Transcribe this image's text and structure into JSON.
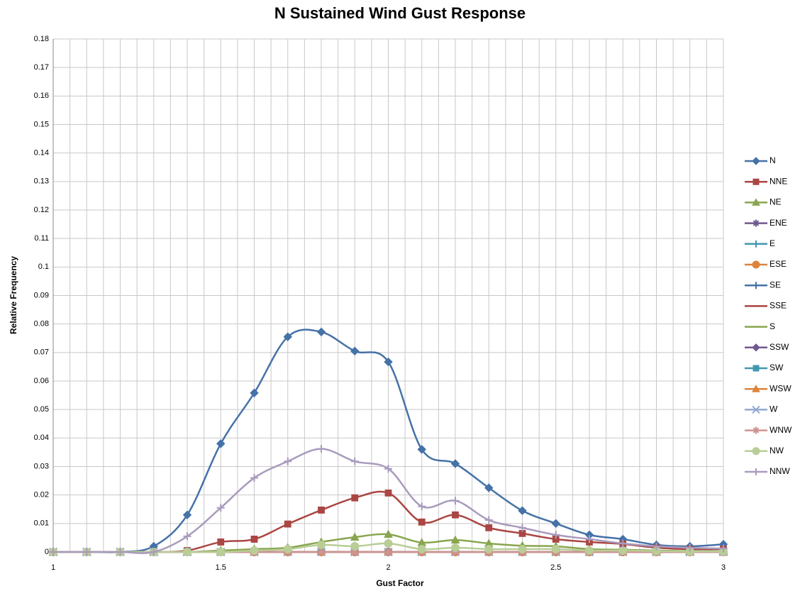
{
  "chart_data": {
    "type": "line",
    "title": "N Sustained Wind Gust Response",
    "xlabel": "Gust Factor",
    "ylabel": "Relative Frequency",
    "x": [
      1,
      1.1,
      1.2,
      1.3,
      1.4,
      1.5,
      1.6,
      1.7,
      1.8,
      1.9,
      2,
      2.1,
      2.2,
      2.3,
      2.4,
      2.5,
      2.6,
      2.7,
      2.8,
      2.9,
      3
    ],
    "xlim": [
      1,
      3
    ],
    "xticks": [
      1,
      1.5,
      2,
      2.5,
      3
    ],
    "xminor": [
      1.05,
      1.1,
      1.15,
      1.2,
      1.25,
      1.3,
      1.35,
      1.4,
      1.45,
      1.55,
      1.6,
      1.65,
      1.7,
      1.75,
      1.8,
      1.85,
      1.9,
      1.95,
      2.05,
      2.1,
      2.15,
      2.2,
      2.25,
      2.3,
      2.35,
      2.4,
      2.45,
      2.55,
      2.6,
      2.65,
      2.7,
      2.75,
      2.8,
      2.85,
      2.9,
      2.95
    ],
    "ylim": [
      0,
      0.18
    ],
    "yticks": [
      0,
      0.01,
      0.02,
      0.03,
      0.04,
      0.05,
      0.06,
      0.07,
      0.08,
      0.09,
      0.1,
      0.11,
      0.12,
      0.13,
      0.14,
      0.15,
      0.16,
      0.17,
      0.18
    ],
    "grid": true,
    "smooth": true,
    "legend": "right",
    "series": [
      {
        "name": "N",
        "color": "#4572a7",
        "marker": "diamond",
        "values": [
          0,
          0,
          0,
          0.002,
          0.013,
          0.038,
          0.0558,
          0.0755,
          0.0772,
          0.0705,
          0.0667,
          0.036,
          0.031,
          0.0225,
          0.0145,
          0.01,
          0.006,
          0.0045,
          0.0025,
          0.002,
          0.0027
        ]
      },
      {
        "name": "NNE",
        "color": "#aa4643",
        "marker": "square",
        "values": [
          0,
          0,
          0,
          0,
          0.0005,
          0.0035,
          0.0045,
          0.0098,
          0.0147,
          0.019,
          0.0207,
          0.0105,
          0.013,
          0.0085,
          0.0065,
          0.0045,
          0.0035,
          0.0028,
          0.0015,
          0.001,
          0.001
        ]
      },
      {
        "name": "NE",
        "color": "#89a54e",
        "marker": "triangle",
        "values": [
          0,
          0,
          0,
          0,
          0,
          0.0005,
          0.001,
          0.0015,
          0.0035,
          0.0052,
          0.0062,
          0.0033,
          0.0042,
          0.003,
          0.0022,
          0.002,
          0.001,
          0.0008,
          0.0005,
          0.0003,
          0.0003
        ]
      },
      {
        "name": "ENE",
        "color": "#71588f",
        "marker": "star",
        "values": [
          0,
          0,
          0,
          0,
          0,
          0,
          0,
          0,
          0,
          0,
          0,
          0,
          0,
          0,
          0,
          0,
          0,
          0,
          0,
          0,
          0
        ]
      },
      {
        "name": "E",
        "color": "#4198af",
        "marker": "plus",
        "values": [
          0,
          0,
          0,
          0,
          0,
          0,
          0,
          0,
          0,
          0,
          0,
          0,
          0,
          0,
          0,
          0,
          0,
          0,
          0,
          0,
          0
        ]
      },
      {
        "name": "ESE",
        "color": "#db843d",
        "marker": "circle",
        "values": [
          0,
          0,
          0,
          0,
          0,
          0,
          0,
          0,
          0,
          0,
          0,
          0,
          0,
          0,
          0,
          0,
          0,
          0,
          0,
          0,
          0
        ]
      },
      {
        "name": "SE",
        "color": "#4572a7",
        "marker": "plus",
        "values": [
          0,
          0,
          0,
          0,
          0,
          0,
          0,
          0,
          0,
          0,
          0,
          0,
          0,
          0,
          0,
          0,
          0,
          0,
          0,
          0,
          0
        ]
      },
      {
        "name": "SSE",
        "color": "#aa4643",
        "marker": "dash",
        "values": [
          0,
          0,
          0,
          0,
          0,
          0,
          0,
          0,
          0,
          0,
          0,
          0,
          0,
          0,
          0,
          0,
          0,
          0,
          0,
          0,
          0
        ]
      },
      {
        "name": "S",
        "color": "#89a54e",
        "marker": "dash",
        "values": [
          0,
          0,
          0,
          0,
          0,
          0,
          0,
          0,
          0,
          0,
          0,
          0,
          0,
          0,
          0,
          0,
          0,
          0,
          0,
          0,
          0
        ]
      },
      {
        "name": "SSW",
        "color": "#71588f",
        "marker": "diamond",
        "values": [
          0,
          0,
          0,
          0,
          0,
          0,
          0,
          0,
          0,
          0,
          0,
          0,
          0,
          0,
          0,
          0,
          0,
          0,
          0,
          0,
          0
        ]
      },
      {
        "name": "SW",
        "color": "#4198af",
        "marker": "square",
        "values": [
          0,
          0,
          0,
          0,
          0,
          0,
          0,
          0,
          0,
          0,
          0,
          0,
          0,
          0,
          0,
          0,
          0,
          0,
          0,
          0,
          0
        ]
      },
      {
        "name": "WSW",
        "color": "#db843d",
        "marker": "triangle",
        "values": [
          0,
          0,
          0,
          0,
          0,
          0,
          0,
          0,
          0,
          0,
          0,
          0,
          0,
          0,
          0,
          0,
          0,
          0,
          0,
          0,
          0
        ]
      },
      {
        "name": "W",
        "color": "#93a9cf",
        "marker": "x",
        "values": [
          0,
          0,
          0,
          0,
          0,
          0,
          0,
          0,
          0,
          0,
          0,
          0,
          0,
          0,
          0,
          0,
          0,
          0,
          0,
          0,
          0
        ]
      },
      {
        "name": "WNW",
        "color": "#d19392",
        "marker": "star",
        "values": [
          0,
          0,
          0,
          0,
          0,
          0,
          0,
          0,
          0,
          0,
          0,
          0,
          0,
          0,
          0,
          0,
          0,
          0,
          0,
          0,
          0
        ]
      },
      {
        "name": "NW",
        "color": "#b9cd96",
        "marker": "circle",
        "values": [
          0,
          0,
          0,
          0,
          0,
          0,
          0.0005,
          0.001,
          0.0025,
          0.002,
          0.003,
          0.001,
          0.0015,
          0.001,
          0.001,
          0.001,
          0.0005,
          0.0005,
          0.0003,
          0.0002,
          0.0002
        ]
      },
      {
        "name": "NNW",
        "color": "#a99bbd",
        "marker": "plus",
        "values": [
          0,
          0,
          0,
          0,
          0.0055,
          0.0155,
          0.026,
          0.0318,
          0.0362,
          0.0318,
          0.0292,
          0.016,
          0.018,
          0.0112,
          0.0085,
          0.006,
          0.0045,
          0.003,
          0.002,
          0.0015,
          0.0012
        ]
      }
    ]
  }
}
